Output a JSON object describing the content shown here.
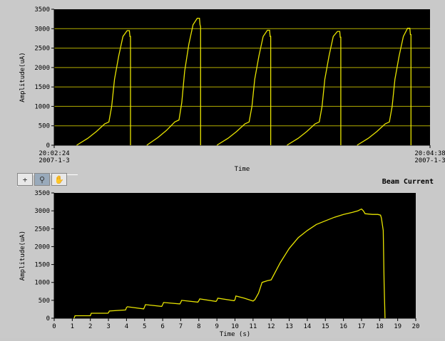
{
  "toolbar": {
    "items": [
      {
        "name": "cursor-tool-icon",
        "glyph": "+"
      },
      {
        "name": "zoom-tool-icon",
        "glyph": "⚲"
      },
      {
        "name": "pan-hand-tool-icon",
        "glyph": "✋"
      }
    ]
  },
  "chart_data": [
    {
      "type": "line",
      "title": "",
      "xlabel": "Time",
      "ylabel": "Amplitude(uA)",
      "xlim": [
        0,
        134
      ],
      "ylim": [
        0,
        3500
      ],
      "yticks": [
        0,
        500,
        1000,
        1500,
        2000,
        2500,
        3000,
        3500
      ],
      "x_tick_labels": [
        {
          "position": "start",
          "time": "20:02:24",
          "date": "2007-1-3"
        },
        {
          "position": "end",
          "time": "20:04:38",
          "date": "2007-1-3"
        }
      ],
      "grid": true,
      "series": [
        {
          "color": "#e8e400",
          "pulses": [
            {
              "x": [
                8,
                12,
                15,
                18,
                19.5,
                20.5,
                21.5,
                23,
                24.5,
                26,
                26.8,
                27,
                27.2,
                27.2
              ],
              "y": [
                0,
                180,
                350,
                550,
                600,
                1000,
                1700,
                2300,
                2800,
                2950,
                2950,
                2800,
                2800,
                0
              ]
            },
            {
              "x": [
                33,
                37,
                40,
                43,
                44.5,
                45.5,
                46.5,
                48,
                49.5,
                51,
                51.8,
                52,
                52.2,
                52.2
              ],
              "y": [
                0,
                200,
                380,
                600,
                650,
                1100,
                1900,
                2600,
                3100,
                3270,
                3270,
                3100,
                3050,
                0
              ]
            },
            {
              "x": [
                58,
                62,
                65,
                68,
                69.5,
                70.5,
                71.5,
                73,
                74.5,
                76,
                76.8,
                77,
                77.2,
                77.2
              ],
              "y": [
                0,
                180,
                350,
                550,
                600,
                1000,
                1700,
                2300,
                2800,
                2960,
                2960,
                2800,
                2800,
                0
              ]
            },
            {
              "x": [
                83,
                87,
                90,
                93,
                94.5,
                95.5,
                96.5,
                98,
                99.5,
                101,
                101.8,
                102,
                102.2,
                102.2
              ],
              "y": [
                0,
                180,
                350,
                550,
                600,
                1000,
                1700,
                2300,
                2800,
                2930,
                2930,
                2780,
                2780,
                0
              ]
            },
            {
              "x": [
                108,
                112,
                115,
                118,
                119.5,
                120.5,
                121.5,
                123,
                124.5,
                126,
                126.8,
                127,
                127.2,
                127.2
              ],
              "y": [
                0,
                180,
                350,
                550,
                600,
                1000,
                1700,
                2300,
                2800,
                3010,
                3010,
                2850,
                2850,
                0
              ]
            }
          ]
        }
      ]
    },
    {
      "type": "line",
      "title": "Beam Current",
      "xlabel": "Time  (s)",
      "ylabel": "Amplitude(uA)",
      "xlim": [
        0,
        20
      ],
      "ylim": [
        0,
        3500
      ],
      "xticks": [
        0,
        1,
        2,
        3,
        4,
        5,
        6,
        7,
        8,
        9,
        10,
        11,
        12,
        13,
        14,
        15,
        16,
        17,
        18,
        19,
        20
      ],
      "yticks": [
        0,
        500,
        1000,
        1500,
        2000,
        2500,
        3000,
        3500
      ],
      "grid": false,
      "series": [
        {
          "color": "#e8e400",
          "x": [
            1.1,
            1.15,
            2.0,
            2.05,
            2.95,
            3.0,
            3.05,
            3.95,
            4.0,
            4.05,
            4.95,
            5.0,
            5.05,
            5.95,
            6.0,
            6.05,
            6.95,
            7.0,
            7.05,
            7.95,
            8.0,
            8.05,
            8.95,
            9.0,
            9.05,
            9.95,
            10.0,
            10.05,
            10.5,
            11.0,
            11.1,
            11.3,
            11.5,
            11.8,
            12.0,
            12.5,
            13.0,
            13.5,
            14.0,
            14.5,
            15.0,
            15.5,
            16.0,
            16.5,
            16.8,
            17.0,
            17.1,
            17.2,
            17.6,
            17.9,
            18.05,
            18.1,
            18.2,
            18.25,
            18.3
          ],
          "y": [
            0,
            70,
            70,
            140,
            140,
            150,
            200,
            230,
            300,
            320,
            260,
            320,
            380,
            330,
            380,
            440,
            400,
            440,
            500,
            450,
            490,
            540,
            470,
            500,
            560,
            490,
            520,
            620,
            560,
            480,
            520,
            700,
            1000,
            1050,
            1070,
            1550,
            1950,
            2250,
            2450,
            2620,
            2720,
            2820,
            2900,
            2960,
            3000,
            3050,
            3000,
            2920,
            2900,
            2900,
            2880,
            2800,
            2450,
            1000,
            0
          ]
        }
      ]
    }
  ]
}
